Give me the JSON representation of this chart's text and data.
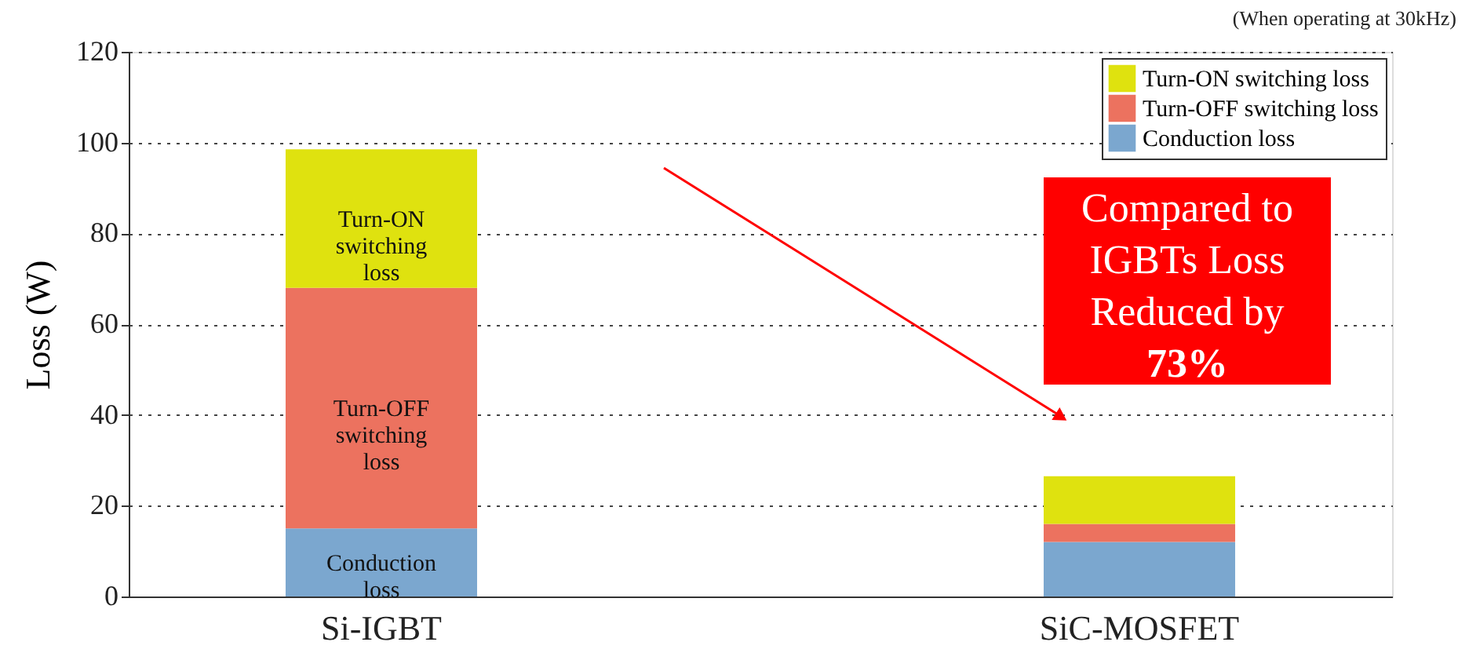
{
  "chart_data": {
    "type": "bar",
    "stacked": true,
    "categories": [
      "Si-IGBT",
      "SiC-MOSFET"
    ],
    "ylabel": "Loss (W)",
    "ylim": [
      0,
      120
    ],
    "yticks": [
      0,
      20,
      40,
      60,
      80,
      100,
      120
    ],
    "grid": "y",
    "legend": "top right",
    "series": [
      {
        "name": "Conduction loss",
        "color": "#7ba7cf",
        "values": [
          15,
          12
        ]
      },
      {
        "name": "Turn-OFF switching loss",
        "color": "#ec725f",
        "values": [
          53,
          4
        ]
      },
      {
        "name": "Turn-ON switching loss",
        "color": "#dfe20f",
        "values": [
          30.5,
          10.5
        ]
      }
    ],
    "annotations": [
      "(When operating at 30kHz)",
      "Compared to\nIGBTs Loss\nReduced by\n73%"
    ]
  }
}
